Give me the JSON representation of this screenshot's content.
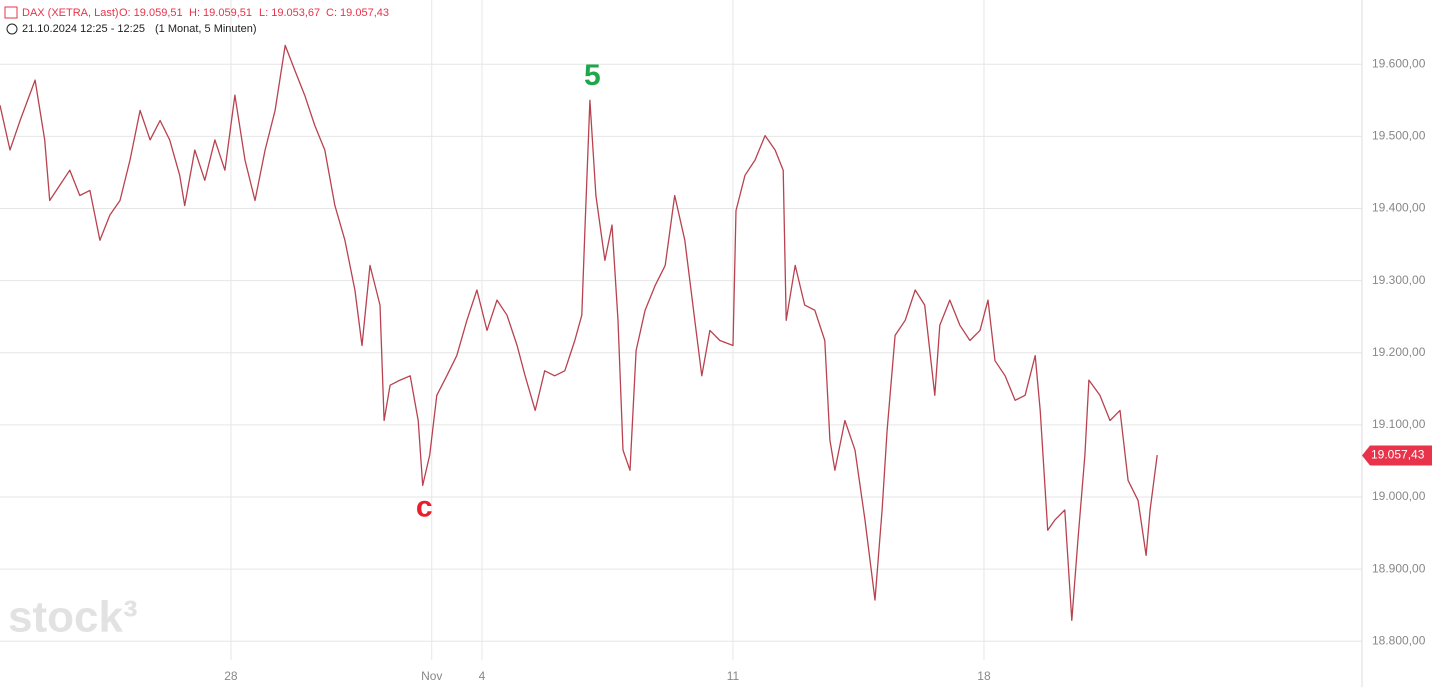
{
  "chart_data": {
    "type": "line",
    "header": {
      "instrument": "DAX (XETRA, Last)",
      "open": "O: 19.059,51",
      "high": "H: 19.059,51",
      "low": "L: 19.053,67",
      "close": "C: 19.057,43",
      "time": "21.10.2024 12:25 - 12:25",
      "period": "(1 Monat, 5 Minuten)"
    },
    "watermark": "stock³",
    "x": [
      -4.6,
      -4.4,
      -4.2,
      -3.9,
      -3.71,
      -3.61,
      -3.41,
      -3.21,
      -3.01,
      -2.81,
      -2.61,
      -2.41,
      -2.21,
      -2.01,
      -1.81,
      -1.61,
      -1.41,
      -1.22,
      -1.02,
      -0.92,
      -0.72,
      -0.52,
      -0.32,
      -0.12,
      0.08,
      0.28,
      0.48,
      0.68,
      0.88,
      1.08,
      1.27,
      1.47,
      1.67,
      1.87,
      2.07,
      2.27,
      2.47,
      2.61,
      2.77,
      2.97,
      3.05,
      3.17,
      3.37,
      3.57,
      3.73,
      3.82,
      3.96,
      4.1,
      4.3,
      4.5,
      4.7,
      4.9,
      5.1,
      5.3,
      5.5,
      5.7,
      5.86,
      6.06,
      6.25,
      6.45,
      6.65,
      6.85,
      6.99,
      7.05,
      7.15,
      7.27,
      7.45,
      7.59,
      7.71,
      7.81,
      7.95,
      8.07,
      8.25,
      8.45,
      8.65,
      8.84,
      9.04,
      9.24,
      9.38,
      9.54,
      9.74,
      10.0,
      10.06,
      10.24,
      10.44,
      10.64,
      10.84,
      11.0,
      11.06,
      11.24,
      11.43,
      11.63,
      11.83,
      11.93,
      12.03,
      12.23,
      12.43,
      12.63,
      12.83,
      12.97,
      13.07,
      13.23,
      13.43,
      13.63,
      13.82,
      14.02,
      14.12,
      14.32,
      14.52,
      14.72,
      14.92,
      15.08,
      15.22,
      15.42,
      15.62,
      15.82,
      16.02,
      16.12,
      16.27,
      16.41,
      16.61,
      16.75,
      16.87,
      17.01,
      17.09,
      17.31,
      17.51,
      17.71,
      17.87,
      18.07,
      18.23,
      18.31,
      18.45
    ],
    "series": [
      {
        "name": "DAX",
        "color": "#b8424f",
        "values": [
          19543,
          19481,
          19522,
          19578,
          19495,
          19411,
          19432,
          19453,
          19418,
          19425,
          19356,
          19391,
          19411,
          19467,
          19536,
          19495,
          19522,
          19495,
          19446,
          19404,
          19481,
          19439,
          19495,
          19453,
          19557,
          19467,
          19411,
          19481,
          19536,
          19626,
          19592,
          19557,
          19515,
          19481,
          19404,
          19356,
          19287,
          19210,
          19321,
          19266,
          19106,
          19155,
          19162,
          19168,
          19106,
          19016,
          19058,
          19141,
          19168,
          19196,
          19245,
          19287,
          19231,
          19273,
          19252,
          19210,
          19168,
          19120,
          19175,
          19168,
          19175,
          19217,
          19252,
          19370,
          19550,
          19418,
          19328,
          19377,
          19245,
          19065,
          19037,
          19203,
          19259,
          19293,
          19321,
          19418,
          19356,
          19245,
          19168,
          19231,
          19217,
          19210,
          19397,
          19446,
          19467,
          19501,
          19481,
          19453,
          19245,
          19321,
          19266,
          19259,
          19217,
          19079,
          19037,
          19106,
          19065,
          18968,
          18857,
          18982,
          19092,
          19224,
          19245,
          19287,
          19266,
          19141,
          19238,
          19273,
          19238,
          19217,
          19231,
          19273,
          19189,
          19168,
          19134,
          19141,
          19196,
          19120,
          18954,
          18968,
          18982,
          18829,
          18940,
          19058,
          19162,
          19141,
          19106,
          19120,
          19023,
          18995,
          18919,
          18982,
          19058
        ]
      }
    ],
    "xlim": [
      -4.6,
      22.53
    ],
    "ylim": [
      18774,
      19689
    ],
    "xticks": [
      {
        "value": 0,
        "label": "28"
      },
      {
        "value": 4,
        "label": "Nov"
      },
      {
        "value": 5,
        "label": "4"
      },
      {
        "value": 10,
        "label": "11"
      },
      {
        "value": 15,
        "label": "18"
      }
    ],
    "yticks": [
      {
        "value": 18800,
        "label": "18.800,00"
      },
      {
        "value": 18900,
        "label": "18.900,00"
      },
      {
        "value": 19000,
        "label": "19.000,00"
      },
      {
        "value": 19100,
        "label": "19.100,00"
      },
      {
        "value": 19200,
        "label": "19.200,00"
      },
      {
        "value": 19300,
        "label": "19.300,00"
      },
      {
        "value": 19400,
        "label": "19.400,00"
      },
      {
        "value": 19500,
        "label": "19.500,00"
      },
      {
        "value": 19600,
        "label": "19.600,00"
      }
    ],
    "grid": true,
    "last_price": {
      "value": 19057.43,
      "label": "19.057,43",
      "color": "#e8334a"
    },
    "annotations": [
      {
        "text": "5",
        "x": 7.2,
        "y": 19582,
        "color": "#1fa84a"
      },
      {
        "text": "c",
        "x": 3.85,
        "y": 18984,
        "color": "#e8202e"
      }
    ]
  }
}
